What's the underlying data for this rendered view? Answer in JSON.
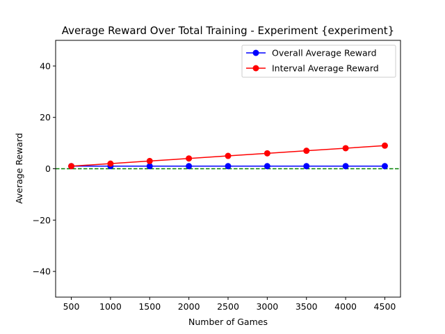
{
  "chart_data": {
    "type": "line",
    "title": "Average Reward Over Total Training - Experiment {experiment}",
    "xlabel": "Number of Games",
    "ylabel": "Average Reward",
    "x": [
      500,
      1000,
      1500,
      2000,
      2500,
      3000,
      3500,
      4000,
      4500
    ],
    "xticks": [
      500,
      1000,
      1500,
      2000,
      2500,
      3000,
      3500,
      4000,
      4500
    ],
    "yticks": [
      -40,
      -20,
      0,
      20,
      40
    ],
    "xlim": [
      300,
      4700
    ],
    "ylim": [
      -50,
      50
    ],
    "grid": false,
    "legend_position": "upper right",
    "series": [
      {
        "name": "Overall Average Reward",
        "color": "#0000ff",
        "values": [
          1,
          1,
          1,
          1,
          1,
          1,
          1,
          1,
          1
        ]
      },
      {
        "name": "Interval Average Reward",
        "color": "#ff0000",
        "values": [
          1,
          2,
          3,
          4,
          5,
          6,
          7,
          8,
          9
        ]
      }
    ],
    "reference_line": {
      "y": 0,
      "color": "#008000",
      "style": "dashed"
    }
  }
}
